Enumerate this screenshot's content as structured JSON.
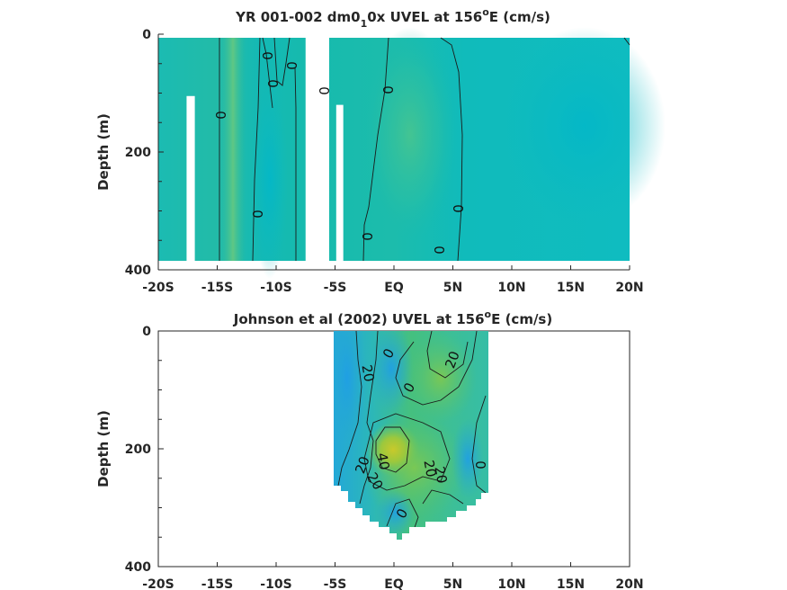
{
  "chart_data": [
    {
      "type": "heatmap",
      "title": "YR 001-002 dm0_1 0x UVEL at 156",
      "title_parts": {
        "pre": "YR 001-002 dm0",
        "sub": "1",
        "mid": "0x UVEL at 156",
        "sup": "o",
        "post": "E (cm/s)"
      },
      "xlabel": "",
      "ylabel": "Depth (m)",
      "xlim": [
        -20,
        20
      ],
      "ylim": [
        400,
        0
      ],
      "x_ticks": [
        -20,
        -15,
        -10,
        -5,
        0,
        5,
        10,
        15,
        20
      ],
      "x_tick_labels": [
        "-20S",
        "-15S",
        "-10S",
        "-5S",
        "EQ",
        "5N",
        "10N",
        "15N",
        "20N"
      ],
      "y_ticks": [
        0,
        200,
        400
      ],
      "y_tick_labels": [
        "0",
        "200",
        "400"
      ],
      "data_extent": {
        "x": [
          -20,
          20
        ],
        "depth": [
          5,
          380
        ]
      },
      "gaps_lon": [
        [
          -17.6,
          -16.9
        ],
        [
          -7.5,
          -5.5
        ],
        [
          -4.9,
          -4.3
        ]
      ],
      "gap_top_depth": [
        105,
        0,
        120
      ],
      "contour_labels": [
        "0",
        "0",
        "0",
        "0",
        "0",
        "0",
        "0",
        "0",
        "0",
        "0"
      ]
    },
    {
      "type": "heatmap",
      "title": "Johnson et al (2002) UVEL at 156",
      "title_parts": {
        "pre": "Johnson et al (2002) UVEL at 156",
        "sup": "o",
        "post": "E (cm/s)"
      },
      "xlabel": "",
      "ylabel": "Depth (m)",
      "xlim": [
        -20,
        20
      ],
      "ylim": [
        400,
        0
      ],
      "x_ticks": [
        -20,
        -15,
        -10,
        -5,
        0,
        5,
        10,
        15,
        20
      ],
      "x_tick_labels": [
        "-20S",
        "-15S",
        "-10S",
        "-5S",
        "EQ",
        "5N",
        "10N",
        "15N",
        "20N"
      ],
      "y_ticks": [
        0,
        200,
        400
      ],
      "y_tick_labels": [
        "0",
        "200",
        "400"
      ],
      "data_extent": {
        "x": [
          -5,
          8
        ],
        "depth": [
          0,
          355
        ]
      },
      "core_max": {
        "lon": 0,
        "depth": 200,
        "value": 40
      },
      "contour_labels": [
        "0",
        "20",
        "0",
        "20",
        "20",
        "40",
        "20",
        "20",
        "20",
        "0",
        "0"
      ]
    }
  ]
}
